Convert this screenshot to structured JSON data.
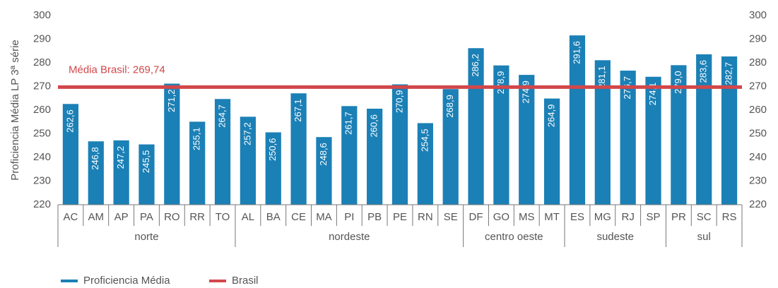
{
  "chart_data": {
    "type": "bar",
    "y_label": "Proficiencia Média LP 3ª série",
    "groups": [
      {
        "name": "norte",
        "categories": [
          "AC",
          "AM",
          "AP",
          "PA",
          "RO",
          "RR",
          "TO"
        ]
      },
      {
        "name": "nordeste",
        "categories": [
          "AL",
          "BA",
          "CE",
          "MA",
          "PI",
          "PB",
          "PE",
          "RN",
          "SE"
        ]
      },
      {
        "name": "centro oeste",
        "categories": [
          "DF",
          "GO",
          "MS",
          "MT"
        ]
      },
      {
        "name": "sudeste",
        "categories": [
          "ES",
          "MG",
          "RJ",
          "SP"
        ]
      },
      {
        "name": "sul",
        "categories": [
          "PR",
          "SC",
          "RS"
        ]
      }
    ],
    "series": [
      {
        "name": "Proficiencia Média",
        "color": "#1b80b6",
        "values": [
          262.6,
          246.8,
          247.2,
          245.5,
          271.2,
          255.1,
          264.7,
          257.2,
          250.6,
          267.1,
          248.6,
          261.7,
          260.6,
          270.9,
          254.5,
          268.9,
          286.2,
          278.9,
          274.9,
          264.9,
          291.6,
          281.1,
          276.7,
          274.1,
          279.0,
          283.6,
          282.7
        ],
        "value_labels": [
          "262,6",
          "246,8",
          "247,2",
          "245,5",
          "271,2",
          "255,1",
          "264,7",
          "257,2",
          "250,6",
          "267,1",
          "248,6",
          "261,7",
          "260,6",
          "270,9",
          "254,5",
          "268,9",
          "286,2",
          "278,9",
          "274,9",
          "264,9",
          "291,6",
          "281,1",
          "276,7",
          "274,1",
          "279,0",
          "283,6",
          "282,7"
        ]
      }
    ],
    "reference_line": {
      "name": "Brasil",
      "color": "#d2474b",
      "value": 269.74,
      "label": "Média Brasil: 269,74"
    },
    "ylim": [
      220,
      300
    ],
    "yticks": [
      220,
      230,
      240,
      250,
      260,
      270,
      280,
      290,
      300
    ],
    "y2lim": [
      220,
      300
    ],
    "y2ticks": [
      220,
      230,
      240,
      250,
      260,
      270,
      280,
      290,
      300
    ]
  }
}
